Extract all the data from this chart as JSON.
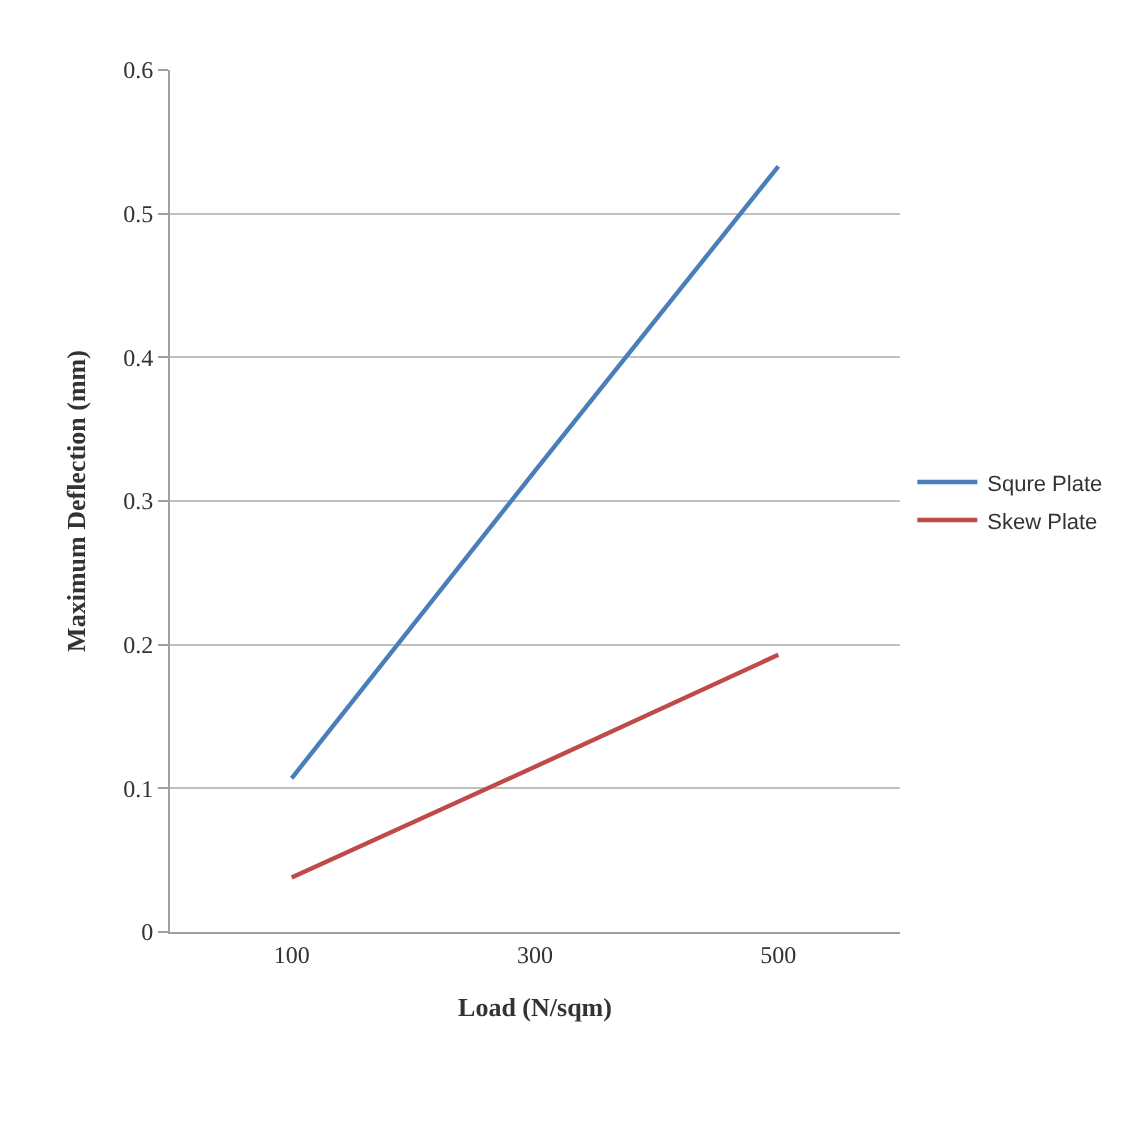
{
  "chart_data": {
    "type": "line",
    "xlabel": "Load (N/sqm)",
    "ylabel": "Maximum Deflection (mm)",
    "categories": [
      "100",
      "300",
      "500"
    ],
    "series": [
      {
        "name": "Squre Plate",
        "color": "#4a7ebb",
        "values": [
          0.107,
          0.321,
          0.533
        ]
      },
      {
        "name": "Skew Plate",
        "color": "#be4b48",
        "values": [
          0.038,
          0.115,
          0.193
        ]
      }
    ],
    "ylim": [
      0,
      0.6
    ],
    "yticks": [
      0,
      0.1,
      0.2,
      0.3,
      0.4,
      0.5,
      0.6
    ],
    "grid": "y",
    "legend": "right",
    "marker": "none",
    "line_style": "solid"
  }
}
